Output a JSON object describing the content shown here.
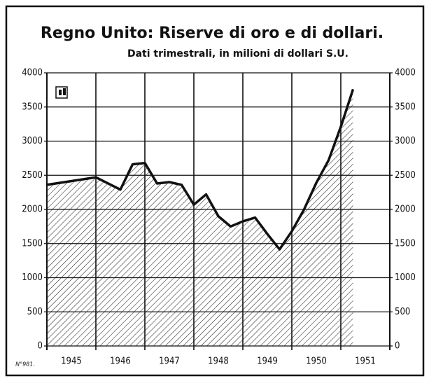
{
  "chart_data": {
    "type": "area",
    "title": "Regno Unito: Riserve di oro e di dollari.",
    "subtitle": "Dati trimestrali, in milioni di dollari S.U.",
    "note": "N°981.",
    "x": [
      1945,
      1946,
      1946.5,
      1946.75,
      1947,
      1947.25,
      1947.5,
      1947.75,
      1948,
      1948.25,
      1948.5,
      1948.75,
      1949,
      1949.25,
      1949.5,
      1949.75,
      1950,
      1950.25,
      1950.5,
      1950.75,
      1951,
      1951.25
    ],
    "values": [
      2360,
      2470,
      2290,
      2660,
      2680,
      2380,
      2400,
      2360,
      2070,
      2220,
      1900,
      1750,
      1825,
      1880,
      1640,
      1415,
      1680,
      2000,
      2390,
      2720,
      3210,
      3760
    ],
    "color": "#111111",
    "xlim": [
      1945,
      1952
    ],
    "xticks": [
      1945,
      1946,
      1947,
      1948,
      1949,
      1950,
      1951
    ],
    "ylim": [
      0,
      4000
    ],
    "yticks": [
      0,
      500,
      1000,
      1500,
      2000,
      2500,
      3000,
      3500,
      4000
    ],
    "grid": true
  }
}
